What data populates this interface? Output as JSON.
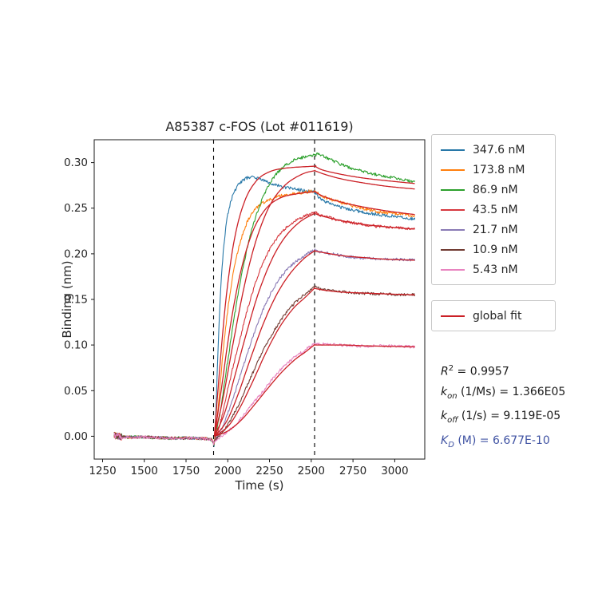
{
  "chart_data": {
    "type": "line",
    "title": "A85387 c-FOS (Lot #011619)",
    "xlabel": "Time (s)",
    "ylabel": "Binding (nm)",
    "xlim": [
      1200,
      3180
    ],
    "ylim": [
      -0.025,
      0.325
    ],
    "xticks": [
      1250,
      1500,
      1750,
      2000,
      2250,
      2500,
      2750,
      3000
    ],
    "xtick_labels": [
      "1250",
      "1500",
      "1750",
      "2000",
      "2250",
      "2500",
      "2750",
      "3000"
    ],
    "yticks": [
      0,
      0.05,
      0.1,
      0.15,
      0.2,
      0.25,
      0.3
    ],
    "ytick_labels": [
      "0.00",
      "0.05",
      "0.10",
      "0.15",
      "0.20",
      "0.25",
      "0.30"
    ],
    "phase_lines_x": [
      1915,
      2520
    ],
    "grid": false,
    "legend_position": "outside-right",
    "baseline_anchors": [
      [
        1320,
        0.001
      ],
      [
        1380,
        -0.001
      ],
      [
        1500,
        -0.001
      ],
      [
        1650,
        -0.002
      ],
      [
        1800,
        -0.002
      ],
      [
        1880,
        -0.003
      ],
      [
        1905,
        -0.004
      ],
      [
        1916,
        -0.008
      ]
    ],
    "series": [
      {
        "name": "347.6 nM",
        "color": "#2878a8",
        "noise": 0.0017,
        "anchors": [
          [
            1920,
            -0.006
          ],
          [
            1933,
            0.05
          ],
          [
            1948,
            0.125
          ],
          [
            1966,
            0.185
          ],
          [
            1988,
            0.228
          ],
          [
            2012,
            0.253
          ],
          [
            2040,
            0.268
          ],
          [
            2075,
            0.278
          ],
          [
            2115,
            0.283
          ],
          [
            2155,
            0.284
          ],
          [
            2205,
            0.281
          ],
          [
            2265,
            0.277
          ],
          [
            2335,
            0.273
          ],
          [
            2405,
            0.271
          ],
          [
            2465,
            0.269
          ],
          [
            2518,
            0.268
          ],
          [
            2522,
            0.266
          ],
          [
            2560,
            0.26
          ],
          [
            2625,
            0.254
          ],
          [
            2700,
            0.25
          ],
          [
            2800,
            0.246
          ],
          [
            2900,
            0.243
          ],
          [
            3005,
            0.241
          ],
          [
            3120,
            0.238
          ]
        ],
        "fit_anchors": [
          [
            1920,
            0
          ],
          [
            1952,
            0.075
          ],
          [
            1992,
            0.155
          ],
          [
            2042,
            0.218
          ],
          [
            2102,
            0.258
          ],
          [
            2172,
            0.28
          ],
          [
            2252,
            0.29
          ],
          [
            2352,
            0.294
          ],
          [
            2518,
            0.296
          ],
          [
            2522,
            0.296
          ],
          [
            2565,
            0.292
          ],
          [
            2655,
            0.288
          ],
          [
            2775,
            0.284
          ],
          [
            2905,
            0.281
          ],
          [
            3120,
            0.277
          ]
        ]
      },
      {
        "name": "173.8 nM",
        "color": "#ff7f0e",
        "noise": 0.0017,
        "anchors": [
          [
            1920,
            -0.006
          ],
          [
            1945,
            0.038
          ],
          [
            1975,
            0.098
          ],
          [
            2012,
            0.155
          ],
          [
            2052,
            0.196
          ],
          [
            2102,
            0.228
          ],
          [
            2152,
            0.246
          ],
          [
            2212,
            0.256
          ],
          [
            2282,
            0.262
          ],
          [
            2362,
            0.265
          ],
          [
            2442,
            0.267
          ],
          [
            2518,
            0.269
          ],
          [
            2528,
            0.268
          ],
          [
            2562,
            0.264
          ],
          [
            2625,
            0.259
          ],
          [
            2705,
            0.255
          ],
          [
            2805,
            0.25
          ],
          [
            2905,
            0.246
          ],
          [
            3005,
            0.244
          ],
          [
            3120,
            0.241
          ]
        ],
        "fit_anchors": [
          [
            1920,
            0
          ],
          [
            1962,
            0.052
          ],
          [
            2012,
            0.117
          ],
          [
            2072,
            0.176
          ],
          [
            2142,
            0.221
          ],
          [
            2222,
            0.248
          ],
          [
            2312,
            0.261
          ],
          [
            2422,
            0.266
          ],
          [
            2518,
            0.268
          ],
          [
            2522,
            0.268
          ],
          [
            2572,
            0.263
          ],
          [
            2672,
            0.257
          ],
          [
            2792,
            0.252
          ],
          [
            2952,
            0.247
          ],
          [
            3120,
            0.243
          ]
        ]
      },
      {
        "name": "86.9 nM",
        "color": "#2ca02c",
        "noise": 0.0017,
        "anchors": [
          [
            1920,
            -0.006
          ],
          [
            1952,
            0.024
          ],
          [
            1992,
            0.073
          ],
          [
            2042,
            0.134
          ],
          [
            2092,
            0.185
          ],
          [
            2142,
            0.225
          ],
          [
            2202,
            0.258
          ],
          [
            2262,
            0.28
          ],
          [
            2332,
            0.295
          ],
          [
            2402,
            0.303
          ],
          [
            2462,
            0.306
          ],
          [
            2518,
            0.308
          ],
          [
            2545,
            0.309
          ],
          [
            2582,
            0.306
          ],
          [
            2642,
            0.301
          ],
          [
            2722,
            0.295
          ],
          [
            2802,
            0.291
          ],
          [
            2902,
            0.286
          ],
          [
            3002,
            0.283
          ],
          [
            3120,
            0.279
          ]
        ],
        "fit_anchors": [
          [
            1920,
            0
          ],
          [
            1972,
            0.042
          ],
          [
            2032,
            0.102
          ],
          [
            2102,
            0.167
          ],
          [
            2172,
            0.216
          ],
          [
            2252,
            0.253
          ],
          [
            2342,
            0.275
          ],
          [
            2442,
            0.287
          ],
          [
            2518,
            0.291
          ],
          [
            2522,
            0.291
          ],
          [
            2582,
            0.287
          ],
          [
            2682,
            0.282
          ],
          [
            2802,
            0.278
          ],
          [
            2952,
            0.274
          ],
          [
            3120,
            0.271
          ]
        ]
      },
      {
        "name": "43.5 nM",
        "color": "#d6383e",
        "noise": 0.0015,
        "anchors": [
          [
            1920,
            -0.006
          ],
          [
            1962,
            0.02
          ],
          [
            2012,
            0.061
          ],
          [
            2072,
            0.106
          ],
          [
            2132,
            0.148
          ],
          [
            2202,
            0.186
          ],
          [
            2272,
            0.211
          ],
          [
            2342,
            0.227
          ],
          [
            2422,
            0.238
          ],
          [
            2518,
            0.245
          ],
          [
            2542,
            0.243
          ],
          [
            2602,
            0.24
          ],
          [
            2682,
            0.236
          ],
          [
            2782,
            0.233
          ],
          [
            2902,
            0.23
          ],
          [
            3002,
            0.229
          ],
          [
            3120,
            0.227
          ]
        ],
        "fit_anchors": [
          [
            1920,
            0
          ],
          [
            1982,
            0.026
          ],
          [
            2042,
            0.066
          ],
          [
            2112,
            0.113
          ],
          [
            2182,
            0.156
          ],
          [
            2262,
            0.193
          ],
          [
            2342,
            0.218
          ],
          [
            2432,
            0.235
          ],
          [
            2518,
            0.244
          ],
          [
            2522,
            0.244
          ],
          [
            2572,
            0.241
          ],
          [
            2662,
            0.237
          ],
          [
            2782,
            0.233
          ],
          [
            2922,
            0.23
          ],
          [
            3120,
            0.227
          ]
        ]
      },
      {
        "name": "21.7 nM",
        "color": "#8a7ab5",
        "noise": 0.0015,
        "anchors": [
          [
            1920,
            -0.006
          ],
          [
            1972,
            0.012
          ],
          [
            2032,
            0.042
          ],
          [
            2102,
            0.082
          ],
          [
            2172,
            0.12
          ],
          [
            2242,
            0.151
          ],
          [
            2312,
            0.173
          ],
          [
            2392,
            0.189
          ],
          [
            2462,
            0.198
          ],
          [
            2518,
            0.204
          ],
          [
            2552,
            0.202
          ],
          [
            2622,
            0.2
          ],
          [
            2722,
            0.197
          ],
          [
            2852,
            0.195
          ],
          [
            3002,
            0.194
          ],
          [
            3120,
            0.193
          ]
        ],
        "fit_anchors": [
          [
            1920,
            0
          ],
          [
            1992,
            0.016
          ],
          [
            2062,
            0.046
          ],
          [
            2132,
            0.083
          ],
          [
            2212,
            0.123
          ],
          [
            2292,
            0.155
          ],
          [
            2372,
            0.178
          ],
          [
            2452,
            0.194
          ],
          [
            2518,
            0.203
          ],
          [
            2522,
            0.203
          ],
          [
            2582,
            0.201
          ],
          [
            2682,
            0.198
          ],
          [
            2802,
            0.196
          ],
          [
            2952,
            0.194
          ],
          [
            3120,
            0.193
          ]
        ]
      },
      {
        "name": "10.9 nM",
        "color": "#703a31",
        "noise": 0.0015,
        "anchors": [
          [
            1920,
            -0.006
          ],
          [
            1982,
            0.008
          ],
          [
            2052,
            0.03
          ],
          [
            2122,
            0.058
          ],
          [
            2202,
            0.09
          ],
          [
            2282,
            0.117
          ],
          [
            2362,
            0.138
          ],
          [
            2442,
            0.153
          ],
          [
            2518,
            0.163
          ],
          [
            2562,
            0.161
          ],
          [
            2652,
            0.159
          ],
          [
            2762,
            0.157
          ],
          [
            2902,
            0.156
          ],
          [
            3120,
            0.155
          ]
        ],
        "fit_anchors": [
          [
            1920,
            0
          ],
          [
            2002,
            0.011
          ],
          [
            2072,
            0.031
          ],
          [
            2152,
            0.061
          ],
          [
            2232,
            0.093
          ],
          [
            2312,
            0.12
          ],
          [
            2392,
            0.14
          ],
          [
            2462,
            0.152
          ],
          [
            2518,
            0.162
          ],
          [
            2522,
            0.162
          ],
          [
            2582,
            0.16
          ],
          [
            2682,
            0.158
          ],
          [
            2802,
            0.157
          ],
          [
            2952,
            0.156
          ],
          [
            3120,
            0.155
          ]
        ]
      },
      {
        "name": "5.43 nM",
        "color": "#e884c0",
        "noise": 0.0015,
        "anchors": [
          [
            1920,
            -0.006
          ],
          [
            1992,
            0.004
          ],
          [
            2062,
            0.016
          ],
          [
            2142,
            0.034
          ],
          [
            2222,
            0.052
          ],
          [
            2302,
            0.07
          ],
          [
            2382,
            0.084
          ],
          [
            2452,
            0.093
          ],
          [
            2518,
            0.101
          ],
          [
            2572,
            0.101
          ],
          [
            2672,
            0.1
          ],
          [
            2802,
            0.099
          ],
          [
            2952,
            0.099
          ],
          [
            3120,
            0.098
          ]
        ],
        "fit_anchors": [
          [
            1920,
            0
          ],
          [
            2002,
            0.006
          ],
          [
            2082,
            0.018
          ],
          [
            2162,
            0.035
          ],
          [
            2242,
            0.053
          ],
          [
            2322,
            0.07
          ],
          [
            2402,
            0.084
          ],
          [
            2462,
            0.092
          ],
          [
            2518,
            0.1
          ],
          [
            2522,
            0.1
          ],
          [
            2582,
            0.1
          ],
          [
            2702,
            0.1
          ],
          [
            2852,
            0.099
          ],
          [
            3120,
            0.098
          ]
        ]
      }
    ],
    "global_fit": {
      "label": "global fit",
      "color": "#cb2026"
    }
  },
  "stats": {
    "r2": {
      "base": "R",
      "sup": "2",
      "rest": " = 0.9957"
    },
    "kon": {
      "base": "k",
      "sub": "on",
      "rest": " (1/Ms) = 1.366E05"
    },
    "koff": {
      "base": "k",
      "sub": "off",
      "rest": " (1/s) = 9.119E-05"
    },
    "kd": {
      "base": "K",
      "sub": "D",
      "rest": " (M) = 6.677E-10",
      "color": "#4053a3"
    }
  }
}
